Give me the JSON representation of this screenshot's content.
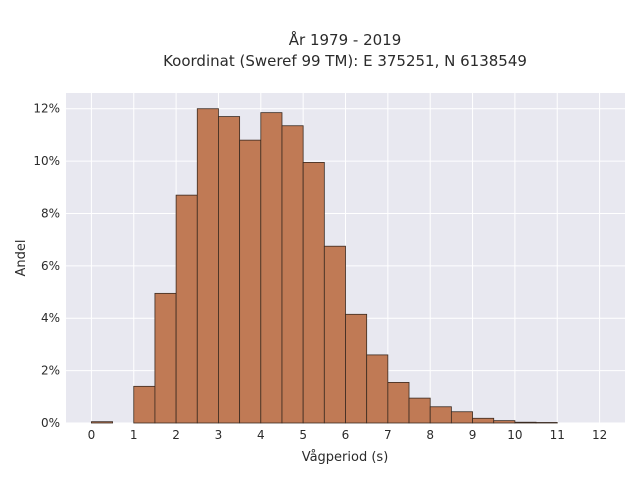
{
  "chart_data": {
    "type": "bar",
    "title": "År 1979 - 2019",
    "subtitle": "Koordinat (Sweref 99 TM): E 375251, N 6138549",
    "xlabel": "Vågperiod (s)",
    "ylabel": "Andel",
    "xlim": [
      -0.6,
      12.6
    ],
    "ylim": [
      0,
      12.6
    ],
    "x_ticks": [
      0,
      1,
      2,
      3,
      4,
      5,
      6,
      7,
      8,
      9,
      10,
      11,
      12
    ],
    "y_ticks": [
      0,
      2,
      4,
      6,
      8,
      10,
      12
    ],
    "y_tick_labels": [
      "0%",
      "2%",
      "4%",
      "6%",
      "8%",
      "10%",
      "12%"
    ],
    "bin_width": 0.5,
    "bin_starts": [
      0,
      1,
      1.5,
      2,
      2.5,
      3,
      3.5,
      4,
      4.5,
      5,
      5.5,
      6,
      6.5,
      7,
      7.5,
      8,
      8.5,
      9,
      9.5,
      10,
      10.5
    ],
    "values": [
      0.05,
      1.4,
      4.95,
      8.7,
      12.0,
      11.7,
      10.8,
      11.85,
      11.35,
      9.95,
      6.75,
      4.15,
      2.6,
      1.55,
      0.95,
      0.62,
      0.43,
      0.18,
      0.09,
      0.03,
      0.02
    ],
    "grid": true,
    "colors": {
      "bar_fill": "#c07a55",
      "bar_edge": "#3a2a20",
      "plot_background": "#e8e8f0",
      "grid": "#ffffff"
    }
  }
}
